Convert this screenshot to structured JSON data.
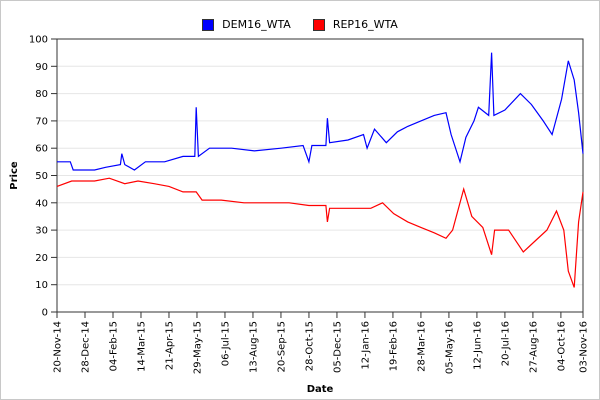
{
  "chart_data": {
    "type": "line",
    "title": "",
    "xlabel": "Date",
    "ylabel": "Price",
    "ylim": [
      0,
      100
    ],
    "yticks": [
      0,
      10,
      20,
      30,
      40,
      50,
      60,
      70,
      80,
      90,
      100
    ],
    "xlim": [
      "2014-11-20",
      "2016-11-03"
    ],
    "xticks": [
      {
        "date": "2014-11-20",
        "label": "20-Nov-14"
      },
      {
        "date": "2014-12-28",
        "label": "28-Dec-14"
      },
      {
        "date": "2015-02-04",
        "label": "04-Feb-15"
      },
      {
        "date": "2015-03-14",
        "label": "14-Mar-15"
      },
      {
        "date": "2015-04-21",
        "label": "21-Apr-15"
      },
      {
        "date": "2015-05-29",
        "label": "29-May-15"
      },
      {
        "date": "2015-07-06",
        "label": "06-Jul-15"
      },
      {
        "date": "2015-08-13",
        "label": "13-Aug-15"
      },
      {
        "date": "2015-09-20",
        "label": "20-Sep-15"
      },
      {
        "date": "2015-10-28",
        "label": "28-Oct-15"
      },
      {
        "date": "2015-12-05",
        "label": "05-Dec-15"
      },
      {
        "date": "2016-01-12",
        "label": "12-Jan-16"
      },
      {
        "date": "2016-02-19",
        "label": "19-Feb-16"
      },
      {
        "date": "2016-03-28",
        "label": "28-Mar-16"
      },
      {
        "date": "2016-05-05",
        "label": "05-May-16"
      },
      {
        "date": "2016-06-12",
        "label": "12-Jun-16"
      },
      {
        "date": "2016-07-20",
        "label": "20-Jul-16"
      },
      {
        "date": "2016-08-27",
        "label": "27-Aug-16"
      },
      {
        "date": "2016-10-04",
        "label": "04-Oct-16"
      },
      {
        "date": "2016-11-03",
        "label": "03-Nov-16"
      }
    ],
    "grid": {
      "horizontal": true,
      "vertical": false
    },
    "legend_placement": "top",
    "series": [
      {
        "name": "DEM16_WTA",
        "color": "#0000ff",
        "points": [
          [
            "2014-11-20",
            55
          ],
          [
            "2014-12-08",
            55
          ],
          [
            "2014-12-12",
            52
          ],
          [
            "2015-01-10",
            52
          ],
          [
            "2015-01-25",
            53
          ],
          [
            "2015-02-14",
            54
          ],
          [
            "2015-02-16",
            58
          ],
          [
            "2015-02-20",
            54
          ],
          [
            "2015-03-05",
            52
          ],
          [
            "2015-03-20",
            55
          ],
          [
            "2015-04-15",
            55
          ],
          [
            "2015-05-10",
            57
          ],
          [
            "2015-05-26",
            57
          ],
          [
            "2015-05-28",
            75
          ],
          [
            "2015-05-31",
            57
          ],
          [
            "2015-06-15",
            60
          ],
          [
            "2015-07-15",
            60
          ],
          [
            "2015-08-15",
            59
          ],
          [
            "2015-09-20",
            60
          ],
          [
            "2015-10-20",
            61
          ],
          [
            "2015-10-28",
            55
          ],
          [
            "2015-11-01",
            61
          ],
          [
            "2015-11-20",
            61
          ],
          [
            "2015-11-22",
            71
          ],
          [
            "2015-11-25",
            62
          ],
          [
            "2015-12-20",
            63
          ],
          [
            "2016-01-10",
            65
          ],
          [
            "2016-01-15",
            60
          ],
          [
            "2016-01-25",
            67
          ],
          [
            "2016-02-10",
            62
          ],
          [
            "2016-02-25",
            66
          ],
          [
            "2016-03-10",
            68
          ],
          [
            "2016-03-28",
            70
          ],
          [
            "2016-04-15",
            72
          ],
          [
            "2016-05-01",
            73
          ],
          [
            "2016-05-08",
            65
          ],
          [
            "2016-05-20",
            55
          ],
          [
            "2016-05-28",
            64
          ],
          [
            "2016-06-08",
            70
          ],
          [
            "2016-06-14",
            75
          ],
          [
            "2016-06-28",
            72
          ],
          [
            "2016-07-02",
            95
          ],
          [
            "2016-07-05",
            72
          ],
          [
            "2016-07-20",
            74
          ],
          [
            "2016-08-10",
            80
          ],
          [
            "2016-08-25",
            76
          ],
          [
            "2016-09-10",
            70
          ],
          [
            "2016-09-22",
            65
          ],
          [
            "2016-10-05",
            78
          ],
          [
            "2016-10-14",
            92
          ],
          [
            "2016-10-22",
            85
          ],
          [
            "2016-10-28",
            73
          ],
          [
            "2016-11-03",
            58
          ]
        ]
      },
      {
        "name": "REP16_WTA",
        "color": "#ff0000",
        "points": [
          [
            "2014-11-20",
            46
          ],
          [
            "2014-12-10",
            48
          ],
          [
            "2015-01-10",
            48
          ],
          [
            "2015-01-30",
            49
          ],
          [
            "2015-02-20",
            47
          ],
          [
            "2015-03-10",
            48
          ],
          [
            "2015-04-01",
            47
          ],
          [
            "2015-04-21",
            46
          ],
          [
            "2015-05-10",
            44
          ],
          [
            "2015-05-28",
            44
          ],
          [
            "2015-06-05",
            41
          ],
          [
            "2015-07-01",
            41
          ],
          [
            "2015-08-01",
            40
          ],
          [
            "2015-09-01",
            40
          ],
          [
            "2015-10-01",
            40
          ],
          [
            "2015-10-28",
            39
          ],
          [
            "2015-11-20",
            39
          ],
          [
            "2015-11-22",
            33
          ],
          [
            "2015-11-25",
            38
          ],
          [
            "2016-01-01",
            38
          ],
          [
            "2016-01-20",
            38
          ],
          [
            "2016-02-05",
            40
          ],
          [
            "2016-02-20",
            36
          ],
          [
            "2016-03-10",
            33
          ],
          [
            "2016-03-28",
            31
          ],
          [
            "2016-04-15",
            29
          ],
          [
            "2016-05-01",
            27
          ],
          [
            "2016-05-10",
            30
          ],
          [
            "2016-05-25",
            45
          ],
          [
            "2016-06-05",
            35
          ],
          [
            "2016-06-20",
            31
          ],
          [
            "2016-07-02",
            21
          ],
          [
            "2016-07-06",
            30
          ],
          [
            "2016-07-25",
            30
          ],
          [
            "2016-08-14",
            22
          ],
          [
            "2016-08-30",
            26
          ],
          [
            "2016-09-15",
            30
          ],
          [
            "2016-09-28",
            37
          ],
          [
            "2016-10-08",
            30
          ],
          [
            "2016-10-14",
            15
          ],
          [
            "2016-10-22",
            9
          ],
          [
            "2016-10-28",
            33
          ],
          [
            "2016-11-03",
            44
          ]
        ]
      }
    ]
  }
}
